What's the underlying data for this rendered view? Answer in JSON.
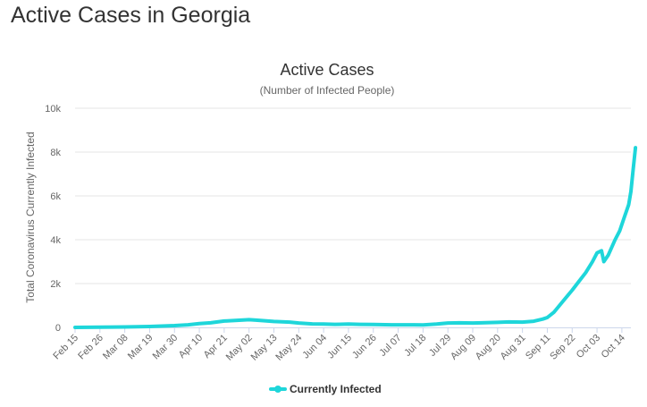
{
  "page": {
    "heading": "Active Cases in Georgia"
  },
  "colors": {
    "series": "#1ed6da",
    "grid": "#e6e6e6",
    "text": "#333333",
    "muted": "#666666"
  },
  "chart_data": {
    "type": "line",
    "title": "Active Cases",
    "subtitle": "(Number of Infected People)",
    "xlabel": "",
    "ylabel": "Total Coronavirus Currently Infected",
    "ylim": [
      0,
      10000
    ],
    "y_ticks": [
      {
        "value": 0,
        "label": "0"
      },
      {
        "value": 2000,
        "label": "2k"
      },
      {
        "value": 4000,
        "label": "4k"
      },
      {
        "value": 6000,
        "label": "6k"
      },
      {
        "value": 8000,
        "label": "8k"
      },
      {
        "value": 10000,
        "label": "10k"
      }
    ],
    "x_ticks": [
      {
        "day": 0,
        "label": "Feb 15"
      },
      {
        "day": 11,
        "label": "Feb 26"
      },
      {
        "day": 22,
        "label": "Mar 08"
      },
      {
        "day": 33,
        "label": "Mar 19"
      },
      {
        "day": 44,
        "label": "Mar 30"
      },
      {
        "day": 55,
        "label": "Apr 10"
      },
      {
        "day": 66,
        "label": "Apr 21"
      },
      {
        "day": 77,
        "label": "May 02"
      },
      {
        "day": 88,
        "label": "May 13"
      },
      {
        "day": 99,
        "label": "May 24"
      },
      {
        "day": 110,
        "label": "Jun 04"
      },
      {
        "day": 121,
        "label": "Jun 15"
      },
      {
        "day": 132,
        "label": "Jun 26"
      },
      {
        "day": 143,
        "label": "Jul 07"
      },
      {
        "day": 154,
        "label": "Jul 18"
      },
      {
        "day": 165,
        "label": "Jul 29"
      },
      {
        "day": 176,
        "label": "Aug 09"
      },
      {
        "day": 187,
        "label": "Aug 20"
      },
      {
        "day": 198,
        "label": "Aug 31"
      },
      {
        "day": 209,
        "label": "Sep 11"
      },
      {
        "day": 220,
        "label": "Sep 22"
      },
      {
        "day": 231,
        "label": "Oct 03"
      },
      {
        "day": 242,
        "label": "Oct 14"
      }
    ],
    "x_max_day": 246,
    "series": [
      {
        "name": "Currently Infected",
        "color": "#1ed6da",
        "points": [
          [
            0,
            0
          ],
          [
            11,
            10
          ],
          [
            22,
            20
          ],
          [
            33,
            40
          ],
          [
            44,
            80
          ],
          [
            50,
            120
          ],
          [
            55,
            170
          ],
          [
            60,
            210
          ],
          [
            66,
            290
          ],
          [
            70,
            310
          ],
          [
            77,
            350
          ],
          [
            80,
            330
          ],
          [
            88,
            270
          ],
          [
            95,
            240
          ],
          [
            99,
            200
          ],
          [
            105,
            160
          ],
          [
            110,
            150
          ],
          [
            115,
            140
          ],
          [
            121,
            150
          ],
          [
            126,
            140
          ],
          [
            132,
            130
          ],
          [
            140,
            120
          ],
          [
            143,
            120
          ],
          [
            150,
            120
          ],
          [
            154,
            110
          ],
          [
            160,
            150
          ],
          [
            165,
            200
          ],
          [
            170,
            210
          ],
          [
            176,
            200
          ],
          [
            180,
            210
          ],
          [
            187,
            230
          ],
          [
            192,
            250
          ],
          [
            198,
            240
          ],
          [
            203,
            280
          ],
          [
            207,
            380
          ],
          [
            209,
            450
          ],
          [
            212,
            700
          ],
          [
            216,
            1200
          ],
          [
            220,
            1700
          ],
          [
            223,
            2100
          ],
          [
            226,
            2500
          ],
          [
            229,
            3000
          ],
          [
            231,
            3400
          ],
          [
            233,
            3500
          ],
          [
            234,
            3000
          ],
          [
            236,
            3300
          ],
          [
            239,
            4000
          ],
          [
            241,
            4400
          ],
          [
            243,
            5000
          ],
          [
            245,
            5600
          ],
          [
            246,
            6200
          ],
          [
            247,
            7200
          ],
          [
            248,
            8200
          ]
        ]
      }
    ],
    "legend": {
      "position": "bottom-center",
      "label": "Currently Infected"
    }
  }
}
